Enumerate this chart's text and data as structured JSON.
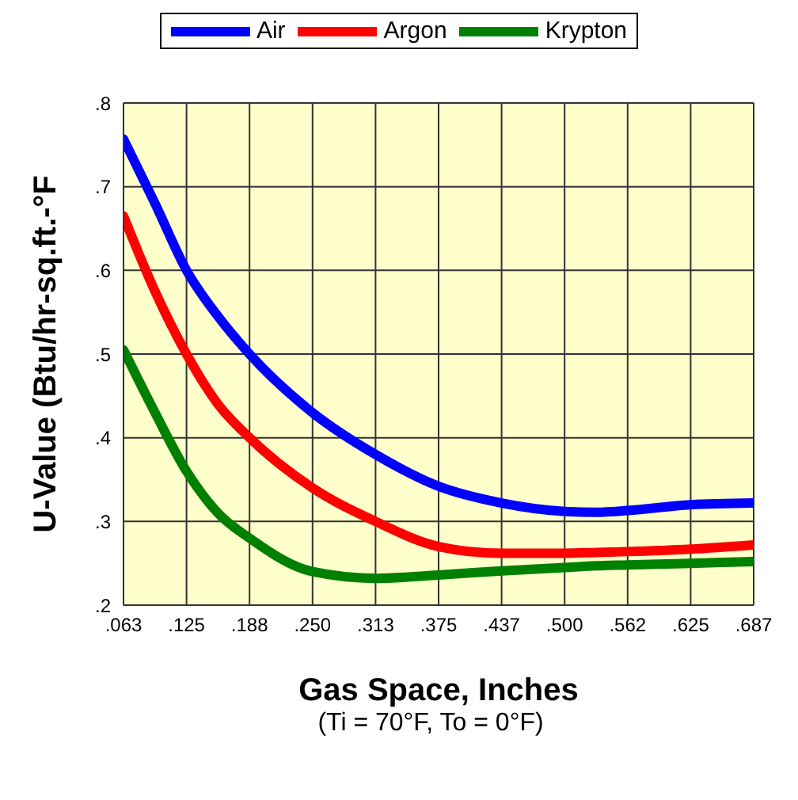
{
  "chart_data": {
    "type": "line",
    "xlabel": "Gas Space, Inches",
    "ylabel": "U-Value (Btu/hr-sq.ft.-°F",
    "annotations": [
      "(Ti = 70°F, To = 0°F)"
    ],
    "x": [
      0.0625,
      0.09375,
      0.125,
      0.15625,
      0.1875,
      0.25,
      0.3125,
      0.375,
      0.4375,
      0.5,
      0.53125,
      0.5625,
      0.625,
      0.6875
    ],
    "series": [
      {
        "name": "Air",
        "color": "#0000ff",
        "values": [
          0.757,
          0.68,
          0.6,
          0.545,
          0.5,
          0.43,
          0.38,
          0.342,
          0.322,
          0.312,
          0.311,
          0.313,
          0.32,
          0.322
        ]
      },
      {
        "name": "Argon",
        "color": "#ff0000",
        "values": [
          0.665,
          0.575,
          0.5,
          0.44,
          0.4,
          0.34,
          0.3,
          0.27,
          0.262,
          0.262,
          0.263,
          0.264,
          0.267,
          0.272
        ]
      },
      {
        "name": "Krypton",
        "color": "#008000",
        "values": [
          0.505,
          0.43,
          0.36,
          0.31,
          0.28,
          0.24,
          0.232,
          0.236,
          0.241,
          0.245,
          0.247,
          0.248,
          0.25,
          0.252
        ]
      }
    ],
    "xlim": [
      0.0625,
      0.6875
    ],
    "xticks": [
      {
        "value": 0.0625,
        "label": ".063"
      },
      {
        "value": 0.125,
        "label": ".125"
      },
      {
        "value": 0.1875,
        "label": ".188"
      },
      {
        "value": 0.25,
        "label": ".250"
      },
      {
        "value": 0.3125,
        "label": ".313"
      },
      {
        "value": 0.375,
        "label": ".375"
      },
      {
        "value": 0.4375,
        "label": ".437"
      },
      {
        "value": 0.5,
        "label": ".500"
      },
      {
        "value": 0.5625,
        "label": ".562"
      },
      {
        "value": 0.625,
        "label": ".625"
      },
      {
        "value": 0.6875,
        "label": ".687"
      }
    ],
    "ylim": [
      0.2,
      0.8
    ],
    "yticks": [
      {
        "value": 0.2,
        "label": ".2"
      },
      {
        "value": 0.3,
        "label": ".3"
      },
      {
        "value": 0.4,
        "label": ".4"
      },
      {
        "value": 0.5,
        "label": ".5"
      },
      {
        "value": 0.6,
        "label": ".6"
      },
      {
        "value": 0.7,
        "label": ".7"
      },
      {
        "value": 0.8,
        "label": ".8"
      }
    ],
    "grid": true,
    "legend": "top",
    "marker": "none",
    "line_style": "solid"
  }
}
